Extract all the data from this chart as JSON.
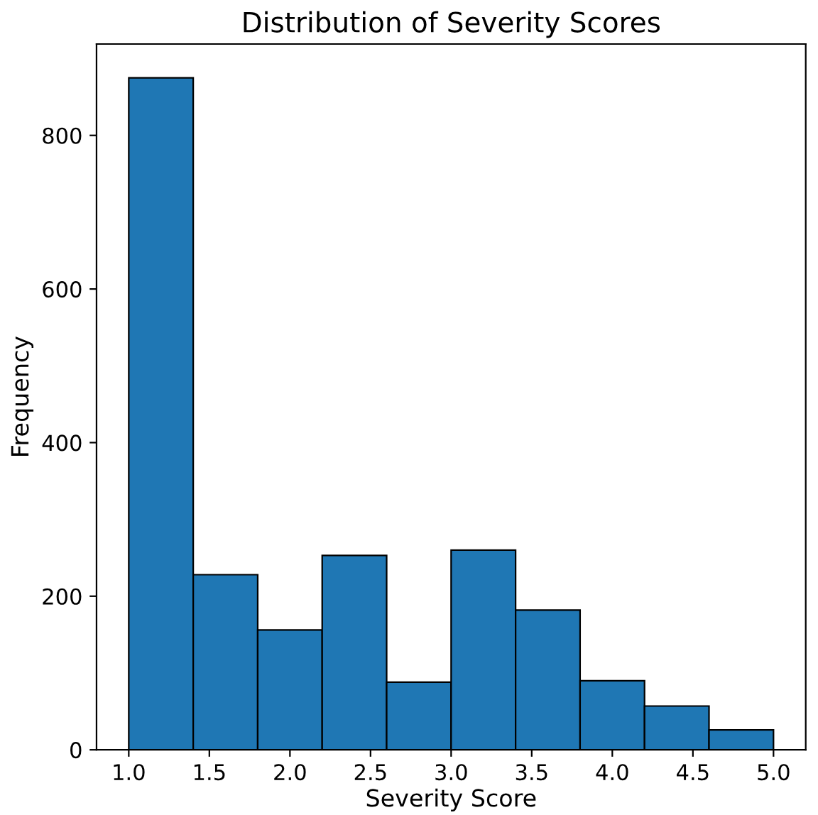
{
  "chart_data": {
    "type": "histogram",
    "title": "Distribution of Severity Scores",
    "xlabel": "Severity Score",
    "ylabel": "Frequency",
    "bins": [
      1.0,
      1.4,
      1.8,
      2.2,
      2.6,
      3.0,
      3.4,
      3.8,
      4.2,
      4.6,
      5.0
    ],
    "values": [
      875,
      228,
      156,
      253,
      88,
      260,
      182,
      90,
      57,
      26
    ],
    "color": "#1f77b4",
    "xlim": [
      0.8,
      5.2
    ],
    "xticks": [
      {
        "value": 1.0,
        "label": "1.0"
      },
      {
        "value": 1.5,
        "label": "1.5"
      },
      {
        "value": 2.0,
        "label": "2.0"
      },
      {
        "value": 2.5,
        "label": "2.5"
      },
      {
        "value": 3.0,
        "label": "3.0"
      },
      {
        "value": 3.5,
        "label": "3.5"
      },
      {
        "value": 4.0,
        "label": "4.0"
      },
      {
        "value": 4.5,
        "label": "4.5"
      },
      {
        "value": 5.0,
        "label": "5.0"
      }
    ],
    "ylim": [
      0,
      919
    ],
    "yticks": [
      0,
      200,
      400,
      600,
      800
    ],
    "grid": false
  }
}
